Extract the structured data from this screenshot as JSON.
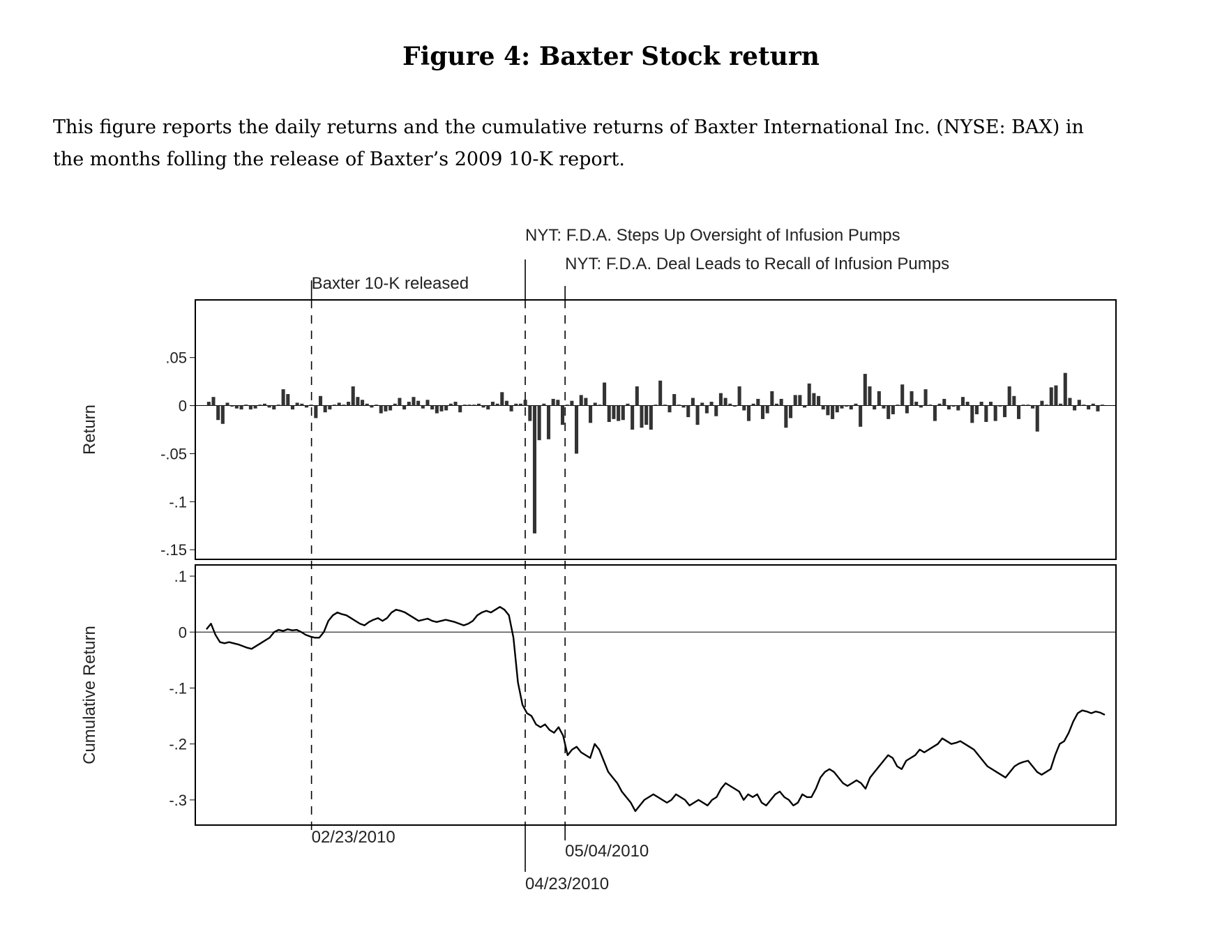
{
  "figure_title": "Figure 4: Baxter Stock return",
  "caption_line1": "This figure reports the daily returns and the cumulative returns of Baxter International Inc. (NYSE: BAX) in",
  "caption_line2": "the months folling the release of Baxter’s 2009 10-K report.",
  "colors": {
    "ink": "#000000",
    "bars": "#333333",
    "frame": "#000000"
  },
  "chart_data": [
    {
      "type": "bar",
      "ylabel": "Return",
      "ylim": [
        -0.16,
        0.11
      ],
      "yticks": [
        {
          "value": 0.05,
          "label": ".05"
        },
        {
          "value": 0,
          "label": "0"
        },
        {
          "value": -0.05,
          "label": "-.05"
        },
        {
          "value": -0.1,
          "label": "-.1"
        },
        {
          "value": -0.15,
          "label": "-.15"
        }
      ],
      "x_domain": [
        "2010-01-25",
        "2010-09-30"
      ],
      "values": [
        0.004,
        0.009,
        -0.015,
        -0.019,
        0.003,
        -0.001,
        -0.003,
        -0.004,
        0.001,
        -0.004,
        -0.003,
        0.001,
        0.002,
        -0.002,
        -0.004,
        0.001,
        0.017,
        0.012,
        -0.004,
        0.003,
        0.002,
        -0.002,
        0.001,
        -0.013,
        0.01,
        -0.007,
        -0.004,
        0.001,
        0.003,
        0.001,
        0.004,
        0.02,
        0.009,
        0.006,
        0.002,
        -0.002,
        0.001,
        -0.008,
        -0.006,
        -0.005,
        0.002,
        0.008,
        -0.004,
        0.004,
        0.009,
        0.005,
        -0.003,
        0.006,
        -0.004,
        -0.008,
        -0.006,
        -0.005,
        0.002,
        0.004,
        -0.007,
        0.001,
        0.001,
        0.001,
        0.002,
        -0.002,
        -0.004,
        0.004,
        0.002,
        0.014,
        0.005,
        -0.006,
        0.002,
        0.002,
        0.006,
        -0.016,
        -0.133,
        -0.036,
        0.002,
        -0.035,
        0.007,
        0.006,
        -0.02,
        0.001,
        0.005,
        -0.05,
        0.011,
        0.008,
        -0.018,
        0.003,
        0.001,
        0.024,
        -0.017,
        -0.014,
        -0.016,
        -0.015,
        0.002,
        -0.025,
        0.02,
        -0.023,
        -0.02,
        -0.025,
        0.001,
        0.026,
        0.001,
        -0.007,
        0.012,
        0.001,
        -0.002,
        -0.012,
        0.008,
        -0.02,
        0.003,
        -0.008,
        0.004,
        -0.011,
        0.013,
        0.008,
        0.002,
        -0.001,
        0.02,
        -0.005,
        -0.016,
        0.002,
        0.007,
        -0.014,
        -0.008,
        0.015,
        0.002,
        0.007,
        -0.023,
        -0.013,
        0.011,
        0.011,
        -0.002,
        0.023,
        0.013,
        0.01,
        -0.004,
        -0.01,
        -0.014,
        -0.007,
        -0.003,
        -0.001,
        -0.004,
        0.002,
        -0.022,
        0.033,
        0.02,
        -0.004,
        0.015,
        -0.003,
        -0.014,
        -0.009,
        0.001,
        0.022,
        -0.008,
        0.015,
        0.004,
        -0.002,
        0.017,
        0.001,
        -0.016,
        0.002,
        0.007,
        -0.004,
        -0.001,
        -0.005,
        0.009,
        0.004,
        -0.018,
        -0.009,
        0.004,
        -0.017,
        0.004,
        -0.016,
        -0.001,
        -0.012,
        0.02,
        0.01,
        -0.014,
        0.001,
        0.001,
        -0.003,
        -0.027,
        0.005,
        0.001,
        0.019,
        0.021,
        0.002,
        0.034,
        0.008,
        -0.005,
        0.006,
        0.001,
        -0.004,
        0.002,
        -0.006,
        0.001
      ]
    },
    {
      "type": "line",
      "ylabel": "Cumulative Return",
      "ylim": [
        -0.345,
        0.12
      ],
      "yticks": [
        {
          "value": 0.1,
          "label": ".1"
        },
        {
          "value": 0,
          "label": "0"
        },
        {
          "value": -0.1,
          "label": "-.1"
        },
        {
          "value": -0.2,
          "label": "-.2"
        },
        {
          "value": -0.3,
          "label": "-.3"
        }
      ],
      "x_domain": [
        "2010-01-25",
        "2010-09-30"
      ],
      "values": [
        0.005,
        0.015,
        -0.005,
        -0.018,
        -0.02,
        -0.018,
        -0.02,
        -0.022,
        -0.025,
        -0.028,
        -0.03,
        -0.025,
        -0.02,
        -0.015,
        -0.01,
        0.0,
        0.004,
        0.002,
        0.005,
        0.003,
        0.004,
        0.0,
        -0.005,
        -0.008,
        -0.01,
        -0.01,
        0.0,
        0.02,
        0.03,
        0.035,
        0.032,
        0.03,
        0.025,
        0.02,
        0.015,
        0.012,
        0.018,
        0.022,
        0.025,
        0.02,
        0.025,
        0.035,
        0.04,
        0.038,
        0.035,
        0.03,
        0.025,
        0.02,
        0.022,
        0.024,
        0.02,
        0.018,
        0.02,
        0.022,
        0.02,
        0.018,
        0.015,
        0.012,
        0.015,
        0.02,
        0.03,
        0.035,
        0.038,
        0.035,
        0.04,
        0.045,
        0.04,
        0.03,
        -0.01,
        -0.09,
        -0.13,
        -0.145,
        -0.15,
        -0.165,
        -0.17,
        -0.165,
        -0.175,
        -0.18,
        -0.17,
        -0.185,
        -0.22,
        -0.21,
        -0.205,
        -0.215,
        -0.22,
        -0.225,
        -0.2,
        -0.21,
        -0.23,
        -0.25,
        -0.26,
        -0.27,
        -0.285,
        -0.295,
        -0.305,
        -0.32,
        -0.31,
        -0.3,
        -0.295,
        -0.29,
        -0.295,
        -0.3,
        -0.305,
        -0.3,
        -0.29,
        -0.295,
        -0.3,
        -0.31,
        -0.305,
        -0.3,
        -0.305,
        -0.31,
        -0.3,
        -0.295,
        -0.28,
        -0.27,
        -0.275,
        -0.28,
        -0.285,
        -0.3,
        -0.29,
        -0.295,
        -0.29,
        -0.305,
        -0.31,
        -0.3,
        -0.29,
        -0.285,
        -0.295,
        -0.3,
        -0.31,
        -0.305,
        -0.29,
        -0.295,
        -0.295,
        -0.28,
        -0.26,
        -0.25,
        -0.245,
        -0.25,
        -0.26,
        -0.27,
        -0.275,
        -0.27,
        -0.265,
        -0.27,
        -0.28,
        -0.26,
        -0.25,
        -0.24,
        -0.23,
        -0.22,
        -0.225,
        -0.24,
        -0.245,
        -0.23,
        -0.225,
        -0.22,
        -0.21,
        -0.215,
        -0.21,
        -0.205,
        -0.2,
        -0.19,
        -0.195,
        -0.2,
        -0.198,
        -0.195,
        -0.2,
        -0.205,
        -0.21,
        -0.22,
        -0.23,
        -0.24,
        -0.245,
        -0.25,
        -0.255,
        -0.26,
        -0.25,
        -0.24,
        -0.235,
        -0.232,
        -0.23,
        -0.24,
        -0.25,
        -0.255,
        -0.25,
        -0.245,
        -0.22,
        -0.2,
        -0.195,
        -0.18,
        -0.16,
        -0.145,
        -0.14,
        -0.142,
        -0.145,
        -0.142,
        -0.144,
        -0.148
      ]
    }
  ],
  "events": [
    {
      "date": "2010-02-23",
      "label": "Baxter 10-K released",
      "date_label": "02/23/2010"
    },
    {
      "date": "2010-04-23",
      "label": "NYT: F.D.A. Steps Up Oversight of Infusion Pumps",
      "date_label": "04/23/2010"
    },
    {
      "date": "2010-05-04",
      "label": "NYT: F.D.A. Deal Leads to Recall of Infusion Pumps",
      "date_label": "05/04/2010"
    }
  ]
}
